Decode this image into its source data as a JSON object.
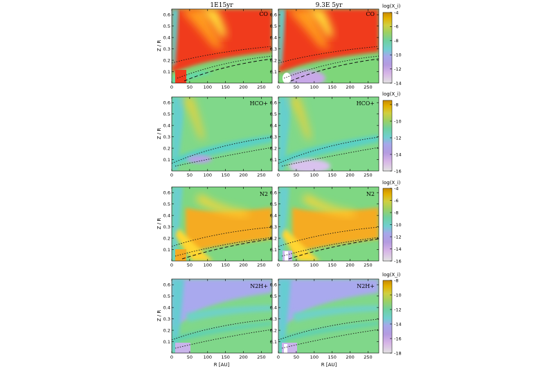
{
  "chart_data": {
    "type": "heatmap",
    "times": [
      "1E15yr",
      "9.3E 5yr"
    ],
    "xlabel": "R [AU]",
    "ylabel": "Z / R",
    "xlim": [
      0,
      280
    ],
    "ylim": [
      0,
      0.65
    ],
    "xticks": [
      "0",
      "50",
      "100",
      "150",
      "200",
      "250"
    ],
    "yticks": [
      "0.1",
      "0.2",
      "0.3",
      "0.4",
      "0.5",
      "0.6"
    ],
    "colorbar_label": "log(X_i)",
    "rows": [
      {
        "species": [
          "CO",
          "CO"
        ],
        "colorbar_ticks": [
          "-4",
          "-6",
          "-8",
          "-10",
          "-12",
          "-14"
        ],
        "vrange": [
          -14,
          -4
        ]
      },
      {
        "species": [
          "HCO+",
          "HCO+"
        ],
        "colorbar_ticks": [
          "-8",
          "-10",
          "-12",
          "-14",
          "-16"
        ],
        "vrange": [
          -16,
          -7.5
        ]
      },
      {
        "species": [
          "N2",
          "N2"
        ],
        "colorbar_ticks": [
          "-4",
          "-6",
          "-8",
          "-10",
          "-12",
          "-14",
          "-16"
        ],
        "vrange": [
          -16,
          -4
        ]
      },
      {
        "species": [
          "N2H+",
          "N2H+"
        ],
        "colorbar_ticks": [
          "-8",
          "-10",
          "-12",
          "-14",
          "-16",
          "-18"
        ],
        "vrange": [
          -18,
          -8
        ]
      }
    ]
  }
}
